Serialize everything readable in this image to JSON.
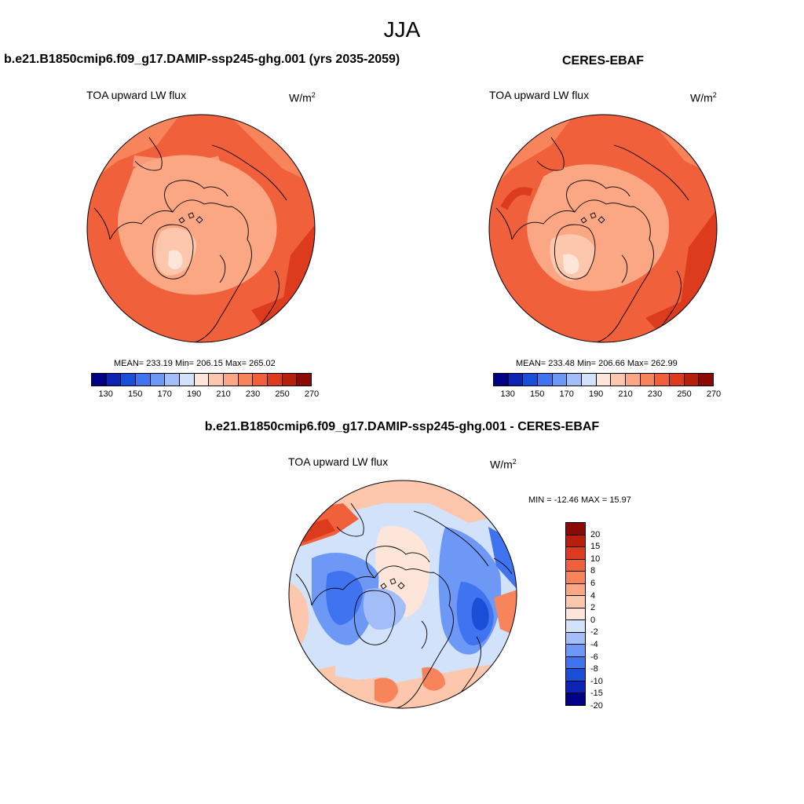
{
  "season": "JJA",
  "panel_left": {
    "title": "b.e21.B1850cmip6.f09_g17.DAMIP-ssp245-ghg.001 (yrs 2035-2059)",
    "variable": "TOA upward LW flux",
    "units": "W/m",
    "units_sup": "2",
    "stats": "MEAN= 233.19  Min= 206.15  Max= 265.02"
  },
  "panel_right": {
    "title": "CERES-EBAF",
    "variable": "TOA upward LW flux",
    "units": "W/m",
    "units_sup": "2",
    "stats": "MEAN= 233.48  Min= 206.66  Max= 262.99"
  },
  "panel_diff": {
    "title": "b.e21.B1850cmip6.f09_g17.DAMIP-ssp245-ghg.001 - CERES-EBAF",
    "variable": "TOA upward LW flux",
    "units": "W/m",
    "units_sup": "2",
    "stats": "MIN = -12.46 MAX =  15.97"
  },
  "abs_colorbar": {
    "colors": [
      "#000086",
      "#0c23b4",
      "#1b4ed6",
      "#3f73ef",
      "#6e98f5",
      "#a2bdf7",
      "#d2e2fa",
      "#fde6d9",
      "#fcc7ad",
      "#fba784",
      "#f8845c",
      "#f0603a",
      "#dc3b1d",
      "#b81f0c",
      "#8b0a06"
    ],
    "labels": [
      "130",
      "150",
      "170",
      "190",
      "210",
      "230",
      "250",
      "270"
    ]
  },
  "diff_colorbar": {
    "colors": [
      "#8b0a06",
      "#b81f0c",
      "#dc3b1d",
      "#f0603a",
      "#f8845c",
      "#fba784",
      "#fcc7ad",
      "#fde6d9",
      "#d2e2fa",
      "#a2bdf7",
      "#6e98f5",
      "#3f73ef",
      "#1b4ed6",
      "#0c23b4",
      "#000086"
    ],
    "labels": [
      "20",
      "15",
      "10",
      "8",
      "6",
      "4",
      "2",
      "0",
      "-2",
      "-4",
      "-6",
      "-8",
      "-10",
      "-15",
      "-20"
    ]
  }
}
